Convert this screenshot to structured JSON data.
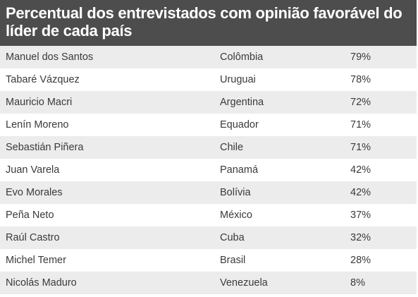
{
  "title": "Percentual dos entrevistados com opinião favorável do líder de cada país",
  "colors": {
    "header_bg": "#4d4d4d",
    "header_text": "#ffffff",
    "row_shaded": "#ececec",
    "row_plain": "#ffffff",
    "cell_text": "#3a3a3a"
  },
  "chart_data": {
    "type": "table",
    "title": "Percentual dos entrevistados com opinião favorável do líder de cada país",
    "rows": [
      {
        "leader": "Manuel dos Santos",
        "country": "Colômbia",
        "value_label": "79%",
        "value": 79
      },
      {
        "leader": "Tabaré Vázquez",
        "country": "Uruguai",
        "value_label": "78%",
        "value": 78
      },
      {
        "leader": "Mauricio Macri",
        "country": "Argentina",
        "value_label": "72%",
        "value": 72
      },
      {
        "leader": "Lenín Moreno",
        "country": "Equador",
        "value_label": "71%",
        "value": 71
      },
      {
        "leader": "Sebastián Piñera",
        "country": "Chile",
        "value_label": "71%",
        "value": 71
      },
      {
        "leader": "Juan Varela",
        "country": "Panamá",
        "value_label": "42%",
        "value": 42
      },
      {
        "leader": "Evo Morales",
        "country": "Bolívia",
        "value_label": "42%",
        "value": 42
      },
      {
        "leader": "Peña Neto",
        "country": "México",
        "value_label": "37%",
        "value": 37
      },
      {
        "leader": "Raúl Castro",
        "country": "Cuba",
        "value_label": "32%",
        "value": 32
      },
      {
        "leader": "Michel Temer",
        "country": "Brasil",
        "value_label": "28%",
        "value": 28
      },
      {
        "leader": "Nicolás Maduro",
        "country": "Venezuela",
        "value_label": "8%",
        "value": 8
      }
    ]
  }
}
